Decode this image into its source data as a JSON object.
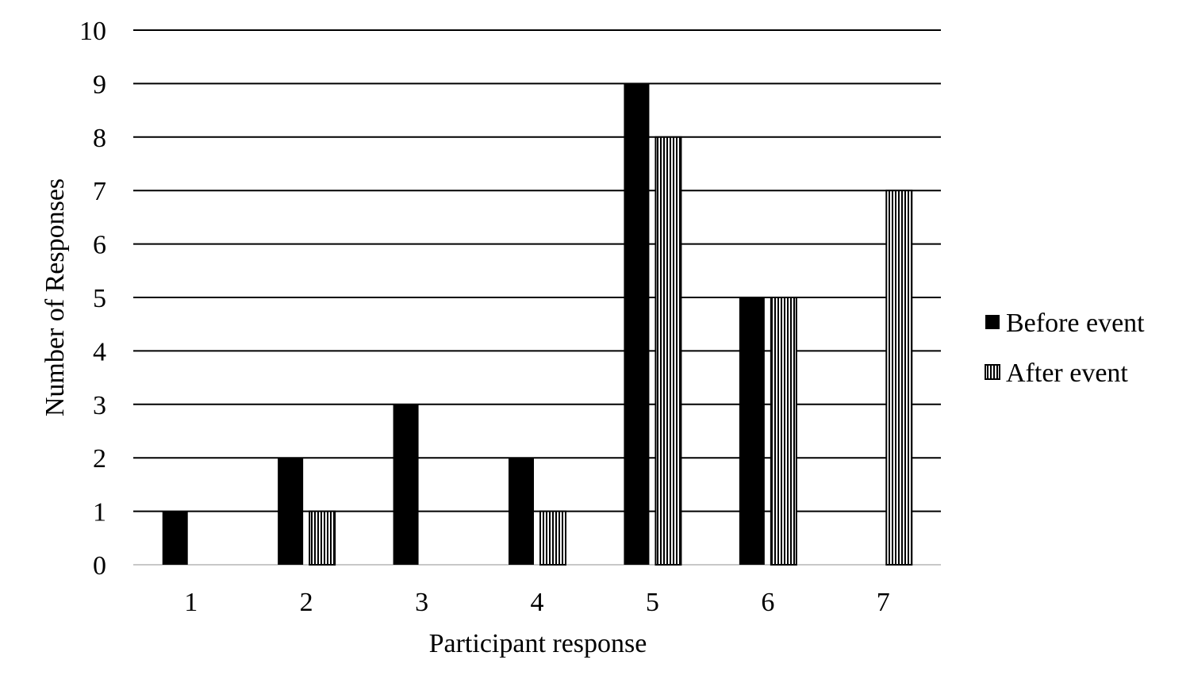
{
  "chart_data": {
    "type": "bar",
    "title": "",
    "xlabel": "Participant response",
    "ylabel": "Number of Responses",
    "categories": [
      "1",
      "2",
      "3",
      "4",
      "5",
      "6",
      "7"
    ],
    "series": [
      {
        "name": "Before event",
        "values": [
          1,
          2,
          3,
          2,
          9,
          5,
          0
        ],
        "fill": "solid",
        "color": "#000000"
      },
      {
        "name": "After event",
        "values": [
          0,
          1,
          0,
          1,
          8,
          5,
          7
        ],
        "fill": "vertical-stripes",
        "color": "#000000"
      }
    ],
    "ylim": [
      0,
      10
    ],
    "yticks": [
      "0",
      "1",
      "2",
      "3",
      "4",
      "5",
      "6",
      "7",
      "8",
      "9",
      "10"
    ],
    "grid": true,
    "legend_position": "right"
  }
}
